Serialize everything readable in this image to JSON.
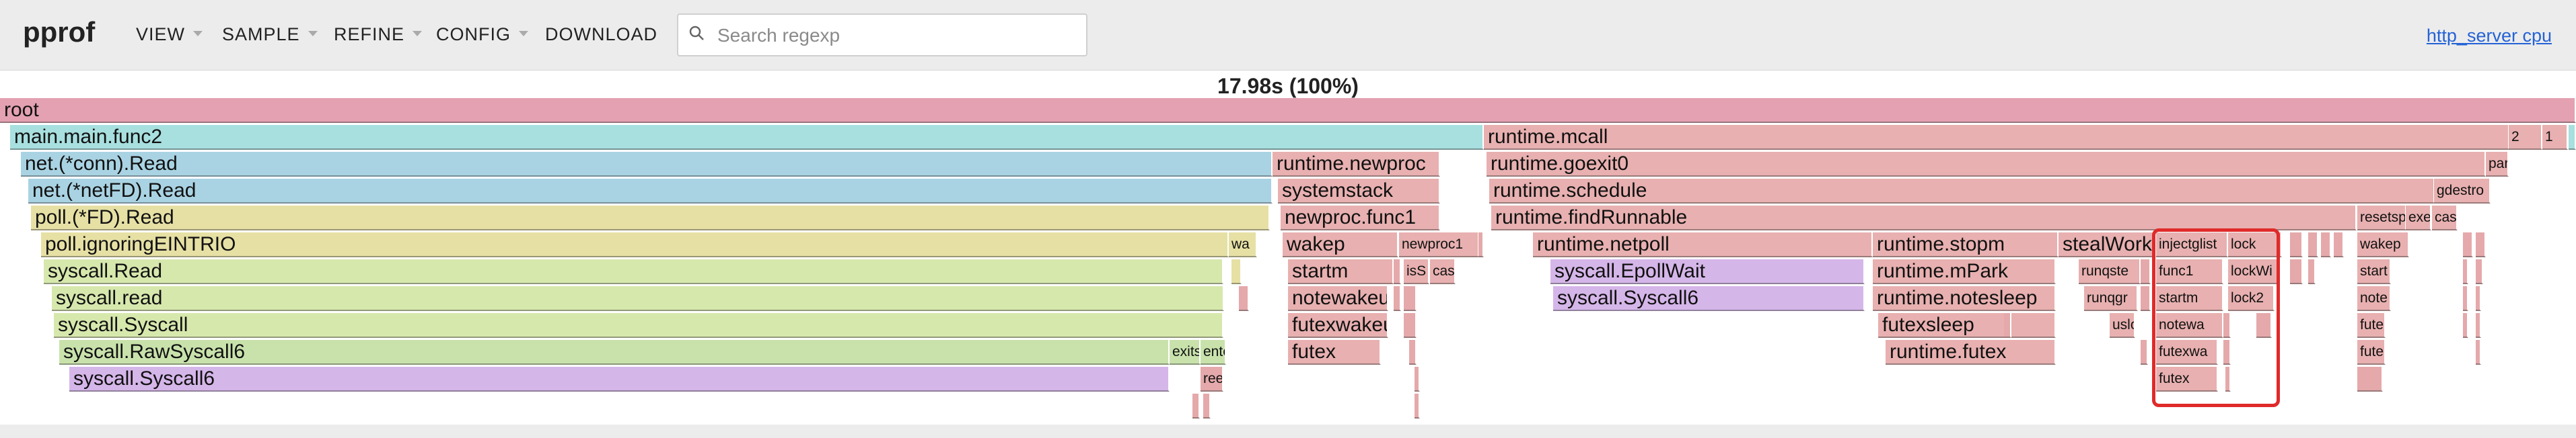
{
  "header": {
    "brand": "pprof",
    "menu": [
      {
        "label": "VIEW",
        "has_caret": true
      },
      {
        "label": "SAMPLE",
        "has_caret": true
      },
      {
        "label": "REFINE",
        "has_caret": true
      },
      {
        "label": "CONFIG",
        "has_caret": true
      },
      {
        "label": "DOWNLOAD",
        "has_caret": false
      }
    ],
    "search": {
      "placeholder": "Search regexp",
      "value": ""
    },
    "binary_link": "http_server cpu"
  },
  "flame": {
    "total_label": "17.98s (100%)",
    "frames": [
      {
        "label": "root",
        "depth": 0,
        "start": 0,
        "width": 1,
        "color": "root"
      },
      {
        "label": "main.main.func2",
        "depth": 1,
        "start": 0.004,
        "width": 0.572,
        "color": "cyan"
      },
      {
        "label": "runtime.mcall",
        "depth": 1,
        "start": 0.576,
        "width": 0.398,
        "color": "red"
      },
      {
        "label": "2",
        "depth": 1,
        "start": 0.974,
        "width": 0.013,
        "color": "red"
      },
      {
        "label": "1",
        "depth": 1,
        "start": 0.987,
        "width": 0.01,
        "color": "red"
      },
      {
        "label": "",
        "depth": 1,
        "start": 0.997,
        "width": 0.003,
        "color": "cyan"
      },
      {
        "label": "net.(*conn).Read",
        "depth": 2,
        "start": 0.008,
        "width": 0.486,
        "color": "blue"
      },
      {
        "label": "runtime.newproc",
        "depth": 2,
        "start": 0.494,
        "width": 0.065,
        "color": "red"
      },
      {
        "label": "runtime.goexit0",
        "depth": 2,
        "start": 0.577,
        "width": 0.388,
        "color": "red"
      },
      {
        "label": "par",
        "depth": 2,
        "start": 0.965,
        "width": 0.009,
        "color": "red"
      },
      {
        "label": "net.(*netFD).Read",
        "depth": 3,
        "start": 0.011,
        "width": 0.483,
        "color": "blue"
      },
      {
        "label": "systemstack",
        "depth": 3,
        "start": 0.496,
        "width": 0.063,
        "color": "red"
      },
      {
        "label": "runtime.schedule",
        "depth": 3,
        "start": 0.578,
        "width": 0.367,
        "color": "red"
      },
      {
        "label": "gdestro",
        "depth": 3,
        "start": 0.945,
        "width": 0.022,
        "color": "red"
      },
      {
        "label": "poll.(*FD).Read",
        "depth": 4,
        "start": 0.012,
        "width": 0.481,
        "color": "yel"
      },
      {
        "label": "newproc.func1",
        "depth": 4,
        "start": 0.497,
        "width": 0.062,
        "color": "red"
      },
      {
        "label": "runtime.findRunnable",
        "depth": 4,
        "start": 0.579,
        "width": 0.336,
        "color": "red"
      },
      {
        "label": "resetsp",
        "depth": 4,
        "start": 0.915,
        "width": 0.019,
        "color": "red"
      },
      {
        "label": "exe",
        "depth": 4,
        "start": 0.934,
        "width": 0.01,
        "color": "red"
      },
      {
        "label": "cas",
        "depth": 4,
        "start": 0.944,
        "width": 0.01,
        "color": "red"
      },
      {
        "label": "poll.ignoringEINTRIO",
        "depth": 5,
        "start": 0.016,
        "width": 0.461,
        "color": "yel"
      },
      {
        "label": "wa",
        "depth": 5,
        "start": 0.477,
        "width": 0.011,
        "color": "yel"
      },
      {
        "label": "wakep",
        "depth": 5,
        "start": 0.498,
        "width": 0.045,
        "color": "red"
      },
      {
        "label": "newproc1",
        "depth": 5,
        "start": 0.543,
        "width": 0.031,
        "color": "red"
      },
      {
        "label": "runtime.netpoll",
        "depth": 5,
        "start": 0.595,
        "width": 0.132,
        "color": "red"
      },
      {
        "label": "runtime.stopm",
        "depth": 5,
        "start": 0.727,
        "width": 0.072,
        "color": "red"
      },
      {
        "label": "stealWork",
        "depth": 5,
        "start": 0.799,
        "width": 0.038,
        "color": "red"
      },
      {
        "label": "injectglist",
        "depth": 5,
        "start": 0.837,
        "width": 0.028,
        "color": "red"
      },
      {
        "label": "lock",
        "depth": 5,
        "start": 0.865,
        "width": 0.021,
        "color": "red"
      },
      {
        "label": "wakep",
        "depth": 5,
        "start": 0.915,
        "width": 0.02,
        "color": "red"
      },
      {
        "label": "syscall.Read",
        "depth": 6,
        "start": 0.017,
        "width": 0.458,
        "color": "grn"
      },
      {
        "label": "startm",
        "depth": 6,
        "start": 0.5,
        "width": 0.041,
        "color": "red"
      },
      {
        "label": "isS",
        "depth": 6,
        "start": 0.545,
        "width": 0.01,
        "color": "red"
      },
      {
        "label": "cas",
        "depth": 6,
        "start": 0.555,
        "width": 0.01,
        "color": "red"
      },
      {
        "label": "syscall.EpollWait",
        "depth": 6,
        "start": 0.602,
        "width": 0.122,
        "color": "pur"
      },
      {
        "label": "runtime.mPark",
        "depth": 6,
        "start": 0.727,
        "width": 0.071,
        "color": "red"
      },
      {
        "label": "runqste",
        "depth": 6,
        "start": 0.807,
        "width": 0.024,
        "color": "red"
      },
      {
        "label": "func1",
        "depth": 6,
        "start": 0.837,
        "width": 0.026,
        "color": "red"
      },
      {
        "label": "lockWi",
        "depth": 6,
        "start": 0.865,
        "width": 0.02,
        "color": "red"
      },
      {
        "label": "start",
        "depth": 6,
        "start": 0.915,
        "width": 0.013,
        "color": "red"
      },
      {
        "label": "syscall.read",
        "depth": 7,
        "start": 0.02,
        "width": 0.455,
        "color": "grn"
      },
      {
        "label": "notewakeup",
        "depth": 7,
        "start": 0.5,
        "width": 0.039,
        "color": "red"
      },
      {
        "label": "syscall.Syscall6",
        "depth": 7,
        "start": 0.603,
        "width": 0.121,
        "color": "pur"
      },
      {
        "label": "runtime.notesleep",
        "depth": 7,
        "start": 0.727,
        "width": 0.071,
        "color": "red"
      },
      {
        "label": "runqgr",
        "depth": 7,
        "start": 0.809,
        "width": 0.021,
        "color": "red"
      },
      {
        "label": "startm",
        "depth": 7,
        "start": 0.837,
        "width": 0.026,
        "color": "red"
      },
      {
        "label": "lock2",
        "depth": 7,
        "start": 0.865,
        "width": 0.018,
        "color": "red"
      },
      {
        "label": "note",
        "depth": 7,
        "start": 0.915,
        "width": 0.013,
        "color": "red"
      },
      {
        "label": "syscall.Syscall",
        "depth": 8,
        "start": 0.021,
        "width": 0.454,
        "color": "grn"
      },
      {
        "label": "futexwakeup",
        "depth": 8,
        "start": 0.5,
        "width": 0.039,
        "color": "red"
      },
      {
        "label": "futexsleep",
        "depth": 8,
        "start": 0.729,
        "width": 0.069,
        "color": "red"
      },
      {
        "label": "uslo",
        "depth": 8,
        "start": 0.819,
        "width": 0.01,
        "color": "red"
      },
      {
        "label": "notewa",
        "depth": 8,
        "start": 0.837,
        "width": 0.026,
        "color": "red"
      },
      {
        "label": "fute",
        "depth": 8,
        "start": 0.915,
        "width": 0.011,
        "color": "red"
      },
      {
        "label": "syscall.RawSyscall6",
        "depth": 9,
        "start": 0.023,
        "width": 0.431,
        "color": "lgrn"
      },
      {
        "label": "exits",
        "depth": 9,
        "start": 0.454,
        "width": 0.012,
        "color": "lgrn"
      },
      {
        "label": "ente",
        "depth": 9,
        "start": 0.466,
        "width": 0.01,
        "color": "lgrn"
      },
      {
        "label": "futex",
        "depth": 9,
        "start": 0.5,
        "width": 0.036,
        "color": "red"
      },
      {
        "label": "runtime.futex",
        "depth": 9,
        "start": 0.732,
        "width": 0.066,
        "color": "red"
      },
      {
        "label": "futexwa",
        "depth": 9,
        "start": 0.837,
        "width": 0.024,
        "color": "red"
      },
      {
        "label": "fute",
        "depth": 9,
        "start": 0.915,
        "width": 0.011,
        "color": "red"
      },
      {
        "label": "syscall.Syscall6",
        "depth": 10,
        "start": 0.027,
        "width": 0.427,
        "color": "pur"
      },
      {
        "label": "ree",
        "depth": 10,
        "start": 0.466,
        "width": 0.009,
        "color": "pink"
      },
      {
        "label": "futex",
        "depth": 10,
        "start": 0.837,
        "width": 0.024,
        "color": "red"
      },
      {
        "label": "",
        "depth": 11,
        "start": 0.463,
        "width": 0.003,
        "color": "pink"
      },
      {
        "label": "",
        "depth": 11,
        "start": 0.467,
        "width": 0.003,
        "color": "pink"
      },
      {
        "label": "",
        "depth": 6,
        "start": 0.478,
        "width": 0.004,
        "color": "yel"
      },
      {
        "label": "",
        "depth": 7,
        "start": 0.481,
        "width": 0.004,
        "color": "pink"
      },
      {
        "label": "",
        "depth": 6,
        "start": 0.541,
        "width": 0.003,
        "color": "pink"
      },
      {
        "label": "",
        "depth": 7,
        "start": 0.541,
        "width": 0.003,
        "color": "pink"
      },
      {
        "label": "",
        "depth": 7,
        "start": 0.545,
        "width": 0.005,
        "color": "pink"
      },
      {
        "label": "",
        "depth": 8,
        "start": 0.545,
        "width": 0.005,
        "color": "pink"
      },
      {
        "label": "",
        "depth": 9,
        "start": 0.547,
        "width": 0.003,
        "color": "pink"
      },
      {
        "label": "",
        "depth": 10,
        "start": 0.549,
        "width": 0.002,
        "color": "pink"
      },
      {
        "label": "",
        "depth": 11,
        "start": 0.549,
        "width": 0.002,
        "color": "pink"
      },
      {
        "label": "",
        "depth": 5,
        "start": 0.574,
        "width": 0.002,
        "color": "pink"
      },
      {
        "label": "",
        "depth": 8,
        "start": 0.778,
        "width": 0.003,
        "color": "pink"
      },
      {
        "label": "",
        "depth": 6,
        "start": 0.831,
        "width": 0.004,
        "color": "pink"
      },
      {
        "label": "",
        "depth": 7,
        "start": 0.831,
        "width": 0.004,
        "color": "pink"
      },
      {
        "label": "",
        "depth": 9,
        "start": 0.831,
        "width": 0.003,
        "color": "pink"
      },
      {
        "label": "",
        "depth": 8,
        "start": 0.863,
        "width": 0.003,
        "color": "pink"
      },
      {
        "label": "",
        "depth": 9,
        "start": 0.863,
        "width": 0.003,
        "color": "pink"
      },
      {
        "label": "",
        "depth": 10,
        "start": 0.864,
        "width": 0.002,
        "color": "pink"
      },
      {
        "label": "",
        "depth": 8,
        "start": 0.876,
        "width": 0.006,
        "color": "pink"
      },
      {
        "label": "",
        "depth": 5,
        "start": 0.889,
        "width": 0.005,
        "color": "pink"
      },
      {
        "label": "",
        "depth": 6,
        "start": 0.889,
        "width": 0.005,
        "color": "pink"
      },
      {
        "label": "",
        "depth": 5,
        "start": 0.896,
        "width": 0.004,
        "color": "pink"
      },
      {
        "label": "",
        "depth": 6,
        "start": 0.896,
        "width": 0.003,
        "color": "pink"
      },
      {
        "label": "",
        "depth": 5,
        "start": 0.901,
        "width": 0.004,
        "color": "pink"
      },
      {
        "label": "",
        "depth": 5,
        "start": 0.906,
        "width": 0.004,
        "color": "pink"
      },
      {
        "label": "",
        "depth": 10,
        "start": 0.915,
        "width": 0.01,
        "color": "pink"
      },
      {
        "label": "",
        "depth": 5,
        "start": 0.956,
        "width": 0.004,
        "color": "pink"
      },
      {
        "label": "",
        "depth": 6,
        "start": 0.956,
        "width": 0.002,
        "color": "pink"
      },
      {
        "label": "",
        "depth": 7,
        "start": 0.956,
        "width": 0.002,
        "color": "pink"
      },
      {
        "label": "",
        "depth": 8,
        "start": 0.956,
        "width": 0.002,
        "color": "pink"
      },
      {
        "label": "",
        "depth": 5,
        "start": 0.961,
        "width": 0.004,
        "color": "pink"
      },
      {
        "label": "",
        "depth": 6,
        "start": 0.961,
        "width": 0.003,
        "color": "pink"
      },
      {
        "label": "",
        "depth": 7,
        "start": 0.961,
        "width": 0.002,
        "color": "pink"
      },
      {
        "label": "",
        "depth": 8,
        "start": 0.961,
        "width": 0.002,
        "color": "pink"
      },
      {
        "label": "",
        "depth": 9,
        "start": 0.961,
        "width": 0.002,
        "color": "pink"
      }
    ]
  }
}
